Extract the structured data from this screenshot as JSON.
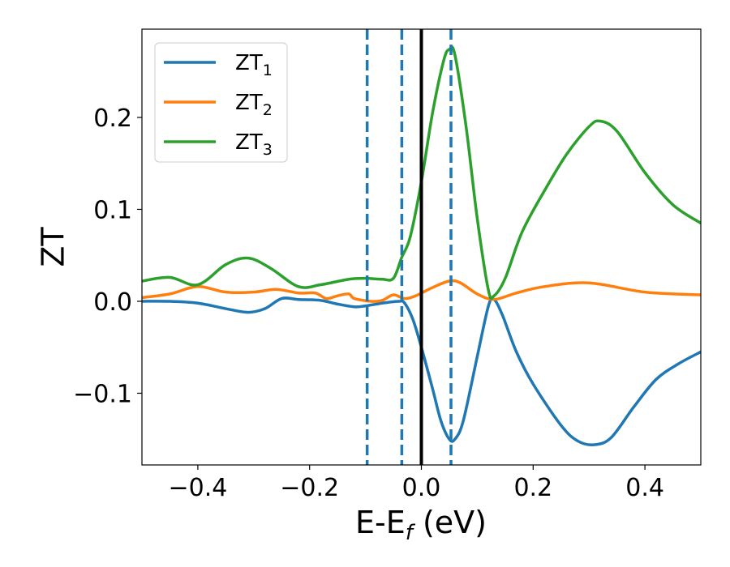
{
  "chart_data": {
    "type": "line",
    "title": "",
    "xlabel": {
      "main": "E-E",
      "sub": "f",
      "tail": " (eV)"
    },
    "ylabel": "ZT",
    "xlim": [
      -0.5,
      0.5
    ],
    "ylim": [
      -0.178,
      0.296
    ],
    "xticks": [
      -0.4,
      -0.2,
      0.0,
      0.2,
      0.4
    ],
    "xtick_labels": [
      "−0.4",
      "−0.2",
      "0.0",
      "0.2",
      "0.4"
    ],
    "yticks": [
      -0.1,
      0.0,
      0.1,
      0.2
    ],
    "ytick_labels": [
      "−0.1",
      "0.0",
      "0.1",
      "0.2"
    ],
    "grid": false,
    "legend_position": "top-left",
    "vlines": [
      {
        "x": 0.0,
        "style": "solid",
        "color": "#000000"
      },
      {
        "x": -0.097,
        "style": "dashed",
        "color": "#1f77b4"
      },
      {
        "x": -0.035,
        "style": "dashed",
        "color": "#1f77b4"
      },
      {
        "x": 0.053,
        "style": "dashed",
        "color": "#1f77b4"
      }
    ],
    "series": [
      {
        "name": "ZT",
        "sub": "1",
        "color": "#1f77b4",
        "points": [
          [
            -0.5,
            0.0
          ],
          [
            -0.45,
            0.0
          ],
          [
            -0.4,
            -0.002
          ],
          [
            -0.35,
            -0.008
          ],
          [
            -0.31,
            -0.012
          ],
          [
            -0.28,
            -0.008
          ],
          [
            -0.25,
            0.003
          ],
          [
            -0.22,
            0.002
          ],
          [
            -0.18,
            0.001
          ],
          [
            -0.15,
            -0.003
          ],
          [
            -0.12,
            -0.006
          ],
          [
            -0.1,
            -0.005
          ],
          [
            -0.07,
            -0.002
          ],
          [
            -0.04,
            0.0
          ],
          [
            -0.03,
            -0.002
          ],
          [
            -0.015,
            -0.02
          ],
          [
            0.0,
            -0.05
          ],
          [
            0.02,
            -0.095
          ],
          [
            0.035,
            -0.13
          ],
          [
            0.05,
            -0.15
          ],
          [
            0.06,
            -0.15
          ],
          [
            0.075,
            -0.13
          ],
          [
            0.1,
            -0.06
          ],
          [
            0.12,
            -0.005
          ],
          [
            0.13,
            0.002
          ],
          [
            0.145,
            -0.015
          ],
          [
            0.17,
            -0.055
          ],
          [
            0.2,
            -0.09
          ],
          [
            0.25,
            -0.135
          ],
          [
            0.28,
            -0.152
          ],
          [
            0.31,
            -0.156
          ],
          [
            0.34,
            -0.148
          ],
          [
            0.38,
            -0.115
          ],
          [
            0.42,
            -0.085
          ],
          [
            0.46,
            -0.068
          ],
          [
            0.5,
            -0.055
          ]
        ]
      },
      {
        "name": "ZT",
        "sub": "2",
        "color": "#ff7f0e",
        "points": [
          [
            -0.5,
            0.004
          ],
          [
            -0.45,
            0.008
          ],
          [
            -0.4,
            0.016
          ],
          [
            -0.35,
            0.01
          ],
          [
            -0.3,
            0.01
          ],
          [
            -0.26,
            0.013
          ],
          [
            -0.22,
            0.009
          ],
          [
            -0.19,
            0.009
          ],
          [
            -0.17,
            0.003
          ],
          [
            -0.15,
            0.006
          ],
          [
            -0.13,
            0.008
          ],
          [
            -0.12,
            0.003
          ],
          [
            -0.09,
            0.0
          ],
          [
            -0.07,
            0.001
          ],
          [
            -0.05,
            0.007
          ],
          [
            -0.03,
            0.003
          ],
          [
            -0.01,
            0.006
          ],
          [
            0.02,
            0.015
          ],
          [
            0.05,
            0.022
          ],
          [
            0.07,
            0.02
          ],
          [
            0.1,
            0.008
          ],
          [
            0.13,
            0.002
          ],
          [
            0.17,
            0.009
          ],
          [
            0.22,
            0.016
          ],
          [
            0.3,
            0.02
          ],
          [
            0.4,
            0.01
          ],
          [
            0.5,
            0.007
          ]
        ]
      },
      {
        "name": "ZT",
        "sub": "3",
        "color": "#2ca02c",
        "points": [
          [
            -0.5,
            0.022
          ],
          [
            -0.45,
            0.026
          ],
          [
            -0.4,
            0.018
          ],
          [
            -0.35,
            0.04
          ],
          [
            -0.31,
            0.047
          ],
          [
            -0.27,
            0.036
          ],
          [
            -0.22,
            0.016
          ],
          [
            -0.18,
            0.018
          ],
          [
            -0.13,
            0.024
          ],
          [
            -0.1,
            0.025
          ],
          [
            -0.07,
            0.024
          ],
          [
            -0.05,
            0.025
          ],
          [
            -0.035,
            0.048
          ],
          [
            -0.02,
            0.07
          ],
          [
            0.0,
            0.13
          ],
          [
            0.02,
            0.205
          ],
          [
            0.04,
            0.262
          ],
          [
            0.05,
            0.274
          ],
          [
            0.06,
            0.268
          ],
          [
            0.08,
            0.19
          ],
          [
            0.1,
            0.09
          ],
          [
            0.12,
            0.012
          ],
          [
            0.13,
            0.006
          ],
          [
            0.15,
            0.025
          ],
          [
            0.18,
            0.075
          ],
          [
            0.22,
            0.12
          ],
          [
            0.26,
            0.16
          ],
          [
            0.3,
            0.19
          ],
          [
            0.32,
            0.196
          ],
          [
            0.35,
            0.185
          ],
          [
            0.4,
            0.14
          ],
          [
            0.45,
            0.105
          ],
          [
            0.5,
            0.085
          ]
        ]
      }
    ]
  }
}
